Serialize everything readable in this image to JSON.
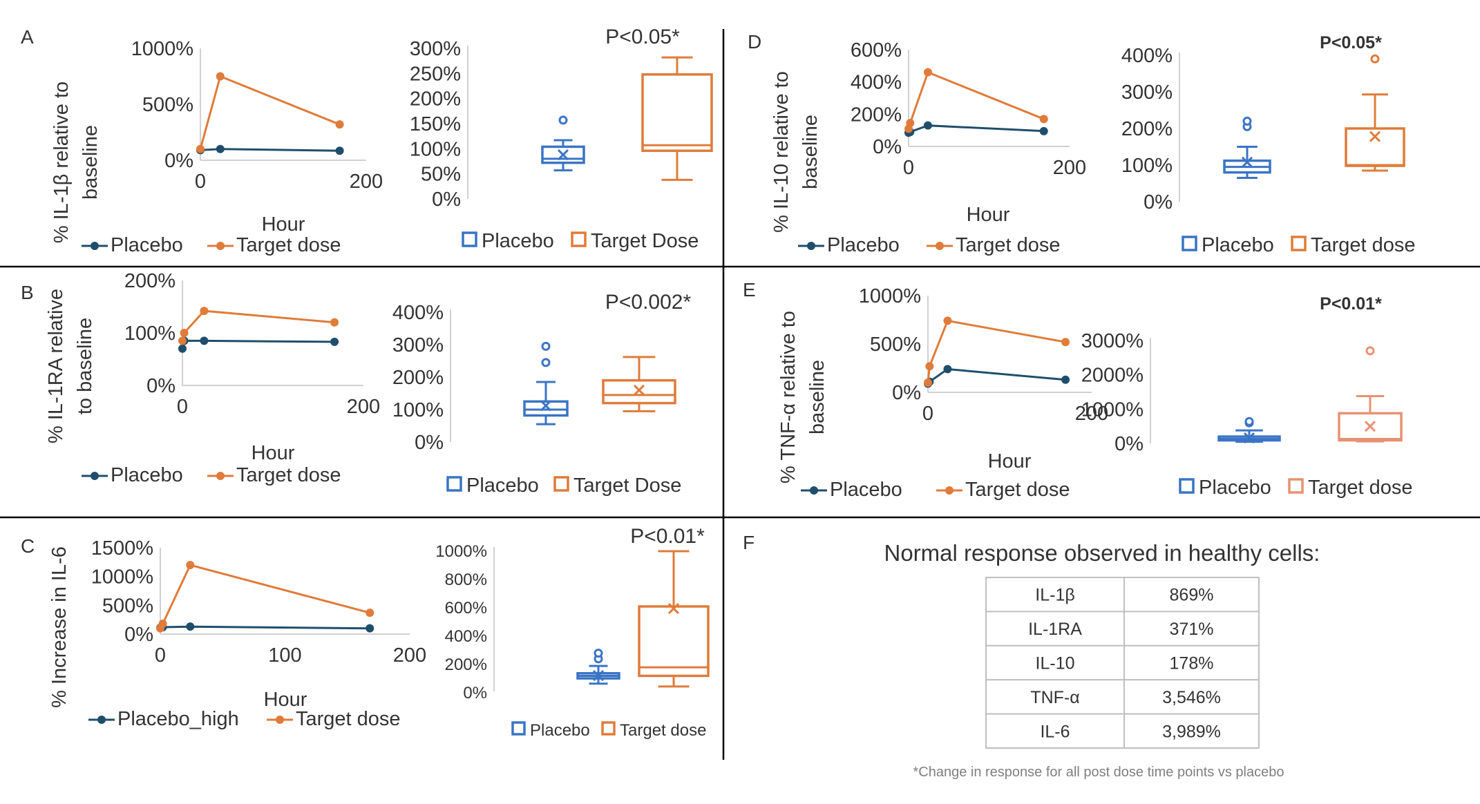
{
  "colors": {
    "placebo_line": "#1F4E6B",
    "target_line": "#E07B39",
    "placebo_box": "#3A74C4",
    "target_box": "#E07B39",
    "target_box_alt": "#E69272",
    "axis": "#D0D0D0",
    "text": "#333333",
    "divider": "#000000"
  },
  "panels": [
    {
      "letter": "A"
    },
    {
      "letter": "B"
    },
    {
      "letter": "C"
    },
    {
      "letter": "D"
    },
    {
      "letter": "E"
    },
    {
      "letter": "F"
    }
  ],
  "chart_data": [
    {
      "id": "A-line",
      "type": "line",
      "ylabel": "% IL-1β relative to baseline",
      "xlabel": "Hour",
      "xlim": [
        0,
        200
      ],
      "xticks": [
        0,
        200
      ],
      "xtick_labels": [
        "0",
        "200"
      ],
      "ylim": [
        0,
        1000
      ],
      "yticks": [
        0,
        500,
        1000
      ],
      "ytick_labels": [
        "0%",
        "500%",
        "1000%"
      ],
      "series": [
        {
          "name": "Placebo",
          "points": [
            [
              0,
              90
            ],
            [
              24,
              100
            ],
            [
              168,
              85
            ]
          ]
        },
        {
          "name": "Target dose",
          "points": [
            [
              0,
              100
            ],
            [
              24,
              750
            ],
            [
              168,
              320
            ]
          ]
        }
      ]
    },
    {
      "id": "A-box",
      "type": "box",
      "ylim": [
        0,
        300
      ],
      "yticks": [
        0,
        50,
        100,
        150,
        200,
        250,
        300
      ],
      "ytick_labels": [
        "0%",
        "50%",
        "100%",
        "150%",
        "200%",
        "250%",
        "300%"
      ],
      "pvalue": "P<0.05*",
      "boxes": [
        {
          "name": "Placebo",
          "min": 57,
          "q1": 72,
          "median": 80,
          "q3": 104,
          "max": 117,
          "mean": 88,
          "outliers": [
            157
          ]
        },
        {
          "name": "Target Dose",
          "min": 38,
          "q1": 96,
          "median": 107,
          "q3": 248,
          "max": 282,
          "mean": null,
          "outliers": []
        }
      ]
    },
    {
      "id": "B-line",
      "type": "line",
      "ylabel": "% IL-1RA relative to baseline",
      "xlabel": "Hour",
      "xlim": [
        0,
        200
      ],
      "xticks": [
        0,
        200
      ],
      "xtick_labels": [
        "0",
        "200"
      ],
      "ylim": [
        0,
        200
      ],
      "yticks": [
        0,
        100,
        200
      ],
      "ytick_labels": [
        "0%",
        "100%",
        "200%"
      ],
      "series": [
        {
          "name": "Placebo",
          "points": [
            [
              0,
              70
            ],
            [
              2,
              85
            ],
            [
              24,
              85
            ],
            [
              168,
              83
            ]
          ]
        },
        {
          "name": "Target dose",
          "points": [
            [
              0,
              85
            ],
            [
              2,
              100
            ],
            [
              24,
              142
            ],
            [
              168,
              120
            ]
          ]
        }
      ]
    },
    {
      "id": "B-box",
      "type": "box",
      "ylim": [
        0,
        400
      ],
      "yticks": [
        0,
        100,
        200,
        300,
        400
      ],
      "ytick_labels": [
        "0%",
        "100%",
        "200%",
        "300%",
        "400%"
      ],
      "pvalue": "P<0.002*",
      "boxes": [
        {
          "name": "Placebo",
          "min": 55,
          "q1": 82,
          "median": 100,
          "q3": 125,
          "max": 185,
          "mean": 112,
          "outliers": [
            245,
            295
          ]
        },
        {
          "name": "Target Dose",
          "min": 95,
          "q1": 120,
          "median": 145,
          "q3": 190,
          "max": 262,
          "mean": 160,
          "outliers": []
        }
      ]
    },
    {
      "id": "C-line",
      "type": "line",
      "ylabel": "% Increase in IL-6",
      "xlabel": "Hour",
      "xlim": [
        0,
        200
      ],
      "xticks": [
        0,
        100,
        200
      ],
      "xtick_labels": [
        "0",
        "100",
        "200"
      ],
      "ylim": [
        0,
        1500
      ],
      "yticks": [
        0,
        500,
        1000,
        1500
      ],
      "ytick_labels": [
        "0%",
        "500%",
        "1000%",
        "1500%"
      ],
      "series": [
        {
          "name": "Placebo_high",
          "points": [
            [
              0,
              110
            ],
            [
              2,
              120
            ],
            [
              24,
              130
            ],
            [
              168,
              100
            ]
          ]
        },
        {
          "name": "Target dose",
          "points": [
            [
              0,
              100
            ],
            [
              2,
              180
            ],
            [
              24,
              1200
            ],
            [
              168,
              370
            ]
          ]
        }
      ]
    },
    {
      "id": "C-box",
      "type": "box",
      "ylim": [
        0,
        1000
      ],
      "yticks": [
        0,
        200,
        400,
        600,
        800,
        1000
      ],
      "ytick_labels": [
        "0%",
        "200%",
        "400%",
        "600%",
        "800%",
        "1000%"
      ],
      "pvalue": "P<0.01*",
      "boxes": [
        {
          "name": "Placebo",
          "min": 55,
          "q1": 92,
          "median": 110,
          "q3": 128,
          "max": 180,
          "mean": 112,
          "outliers": [
            230,
            270
          ]
        },
        {
          "name": "Target dose",
          "min": 35,
          "q1": 110,
          "median": 170,
          "q3": 600,
          "max": 990,
          "mean": 585,
          "outliers": []
        }
      ]
    },
    {
      "id": "D-line",
      "type": "line",
      "ylabel": "% IL-10 relative to baseline",
      "xlabel": "Hour",
      "xlim": [
        0,
        200
      ],
      "xticks": [
        0,
        200
      ],
      "xtick_labels": [
        "0",
        "200"
      ],
      "ylim": [
        0,
        600
      ],
      "yticks": [
        0,
        200,
        400,
        600
      ],
      "ytick_labels": [
        "0%",
        "200%",
        "400%",
        "600%"
      ],
      "series": [
        {
          "name": "Placebo",
          "points": [
            [
              0,
              85
            ],
            [
              2,
              90
            ],
            [
              24,
              130
            ],
            [
              168,
              95
            ]
          ]
        },
        {
          "name": "Target dose",
          "points": [
            [
              0,
              110
            ],
            [
              2,
              145
            ],
            [
              24,
              460
            ],
            [
              168,
              170
            ]
          ]
        }
      ]
    },
    {
      "id": "D-box",
      "type": "box",
      "ylim": [
        0,
        400
      ],
      "yticks": [
        0,
        100,
        200,
        300,
        400
      ],
      "ytick_labels": [
        "0%",
        "100%",
        "200%",
        "300%",
        "400%"
      ],
      "pvalue": "P<0.05*",
      "boxes": [
        {
          "name": "Placebo",
          "min": 65,
          "q1": 80,
          "median": 95,
          "q3": 112,
          "max": 150,
          "mean": 108,
          "outliers": [
            205,
            220
          ]
        },
        {
          "name": "Target dose",
          "min": 85,
          "q1": 98,
          "median": 100,
          "q3": 200,
          "max": 293,
          "mean": 178,
          "outliers": [
            390
          ]
        }
      ]
    },
    {
      "id": "E-line",
      "type": "line",
      "ylabel": "% TNF-α relative to baseline",
      "xlabel": "Hour",
      "xlim": [
        0,
        200
      ],
      "xticks": [
        0,
        200
      ],
      "xtick_labels": [
        "0",
        "200"
      ],
      "ylim": [
        0,
        1000
      ],
      "yticks": [
        0,
        500,
        1000
      ],
      "ytick_labels": [
        "0%",
        "500%",
        "1000%"
      ],
      "series": [
        {
          "name": "Placebo",
          "points": [
            [
              0,
              90
            ],
            [
              2,
              110
            ],
            [
              24,
              240
            ],
            [
              168,
              130
            ]
          ]
        },
        {
          "name": "Target dose",
          "points": [
            [
              0,
              100
            ],
            [
              2,
              270
            ],
            [
              24,
              740
            ],
            [
              168,
              520
            ]
          ]
        }
      ]
    },
    {
      "id": "E-box",
      "type": "box",
      "ylim": [
        0,
        3000
      ],
      "yticks": [
        0,
        1000,
        2000,
        3000
      ],
      "ytick_labels": [
        "0%",
        "1000%",
        "2000%",
        "3000%"
      ],
      "pvalue": "P<0.01*",
      "boxes": [
        {
          "name": "Placebo",
          "min": 50,
          "q1": 90,
          "median": 130,
          "q3": 200,
          "max": 380,
          "mean": 160,
          "outliers": [
            600,
            640
          ]
        },
        {
          "name": "Target dose",
          "min": 60,
          "q1": 90,
          "median": 130,
          "q3": 880,
          "max": 1380,
          "mean": 500,
          "outliers": [
            2700
          ]
        }
      ]
    },
    {
      "id": "F-table",
      "type": "table",
      "title": "Normal response observed in healthy cells:",
      "rows": [
        [
          "IL-1β",
          "869%"
        ],
        [
          "IL-1RA",
          "371%"
        ],
        [
          "IL-10",
          "178%"
        ],
        [
          "TNF-α",
          "3,546%"
        ],
        [
          "IL-6",
          "3,989%"
        ]
      ],
      "footnote": "*Change in response for all post dose time points vs placebo"
    }
  ]
}
